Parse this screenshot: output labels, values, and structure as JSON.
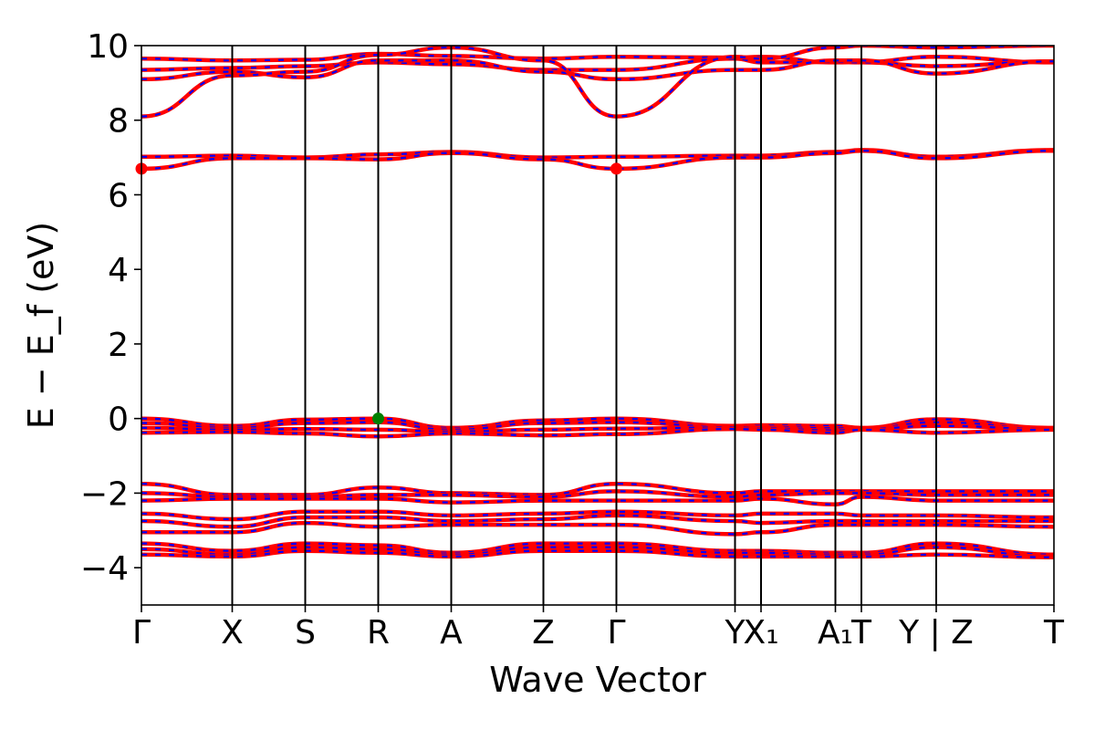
{
  "chart_data": {
    "type": "line",
    "title": "",
    "xlabel": "Wave Vector",
    "ylabel": "E − E_f (eV)",
    "ylim": [
      -5,
      10
    ],
    "yticks": [
      -4,
      -2,
      0,
      2,
      4,
      6,
      8,
      10
    ],
    "ytick_labels": [
      "−4",
      "−2",
      "0",
      "2",
      "4",
      "6",
      "8",
      "10"
    ],
    "kpath_labels": [
      "Γ",
      "X",
      "S",
      "R",
      "A",
      "Z",
      "Γ",
      "Y",
      "X₁",
      "A₁",
      "T",
      "Y | Z",
      "T"
    ],
    "kpath_positions": [
      0,
      0.0995,
      0.1795,
      0.2595,
      0.3395,
      0.4405,
      0.5205,
      0.6505,
      0.679,
      0.7605,
      0.789,
      0.871,
      1.0
    ],
    "grid": false,
    "legend": "none",
    "colors": {
      "band": "#ff0000",
      "band_dash": "#0000ff",
      "cbm": "#ff0000",
      "vbm": "#008000",
      "vline": "#000000"
    },
    "markers": [
      {
        "name": "CBM",
        "k": 0,
        "energy": 6.7,
        "color": "#ff0000"
      },
      {
        "name": "CBM",
        "k": 0.5205,
        "energy": 6.7,
        "color": "#ff0000"
      },
      {
        "name": "VBM",
        "k": 0.2595,
        "energy": 0.0,
        "color": "#008000"
      }
    ],
    "series": [
      {
        "values": [
          9.65,
          9.6,
          9.62,
          9.78,
          9.72,
          9.65,
          9.7,
          9.68,
          9.7,
          9.55,
          9.56,
          9.7,
          9.55
        ]
      },
      {
        "values": [
          9.35,
          9.4,
          9.45,
          9.55,
          9.5,
          9.35,
          9.35,
          9.65,
          9.55,
          9.56,
          9.55,
          9.45,
          9.58
        ]
      },
      {
        "values": [
          9.1,
          9.3,
          9.15,
          9.6,
          9.6,
          9.3,
          9.1,
          9.35,
          9.35,
          9.6,
          9.6,
          9.25,
          9.58
        ]
      },
      {
        "values": [
          8.1,
          9.2,
          9.3,
          9.75,
          9.95,
          9.6,
          8.1,
          9.7,
          9.65,
          9.95,
          10.0,
          9.95,
          10.0
        ]
      },
      {
        "values": [
          7.02,
          7.05,
          7.0,
          7.08,
          7.15,
          7.0,
          7.02,
          7.05,
          7.05,
          7.15,
          7.2,
          7.02,
          7.2
        ]
      },
      {
        "values": [
          6.7,
          6.98,
          6.98,
          6.95,
          7.12,
          6.95,
          6.7,
          7.0,
          7.0,
          7.12,
          7.18,
          6.98,
          7.18
        ]
      },
      {
        "values": [
          0.0,
          -0.2,
          -0.03,
          0.0,
          -0.25,
          -0.05,
          0.0,
          -0.2,
          -0.18,
          -0.2,
          -0.25,
          -0.02,
          -0.25
        ]
      },
      {
        "values": [
          -0.12,
          -0.25,
          -0.12,
          -0.1,
          -0.3,
          -0.12,
          -0.1,
          -0.22,
          -0.22,
          -0.26,
          -0.27,
          -0.1,
          -0.27
        ]
      },
      {
        "values": [
          -0.25,
          -0.3,
          -0.28,
          -0.3,
          -0.35,
          -0.3,
          -0.27,
          -0.24,
          -0.26,
          -0.32,
          -0.28,
          -0.2,
          -0.28
        ]
      },
      {
        "values": [
          -0.38,
          -0.36,
          -0.4,
          -0.48,
          -0.4,
          -0.45,
          -0.42,
          -0.28,
          -0.3,
          -0.38,
          -0.3,
          -0.38,
          -0.3
        ]
      },
      {
        "values": [
          -1.75,
          -2.05,
          -2.05,
          -1.85,
          -2.0,
          -2.05,
          -1.75,
          -2.0,
          -1.95,
          -1.95,
          -1.95,
          -1.95,
          -1.95
        ]
      },
      {
        "values": [
          -2.0,
          -2.1,
          -2.1,
          -2.05,
          -2.05,
          -2.1,
          -1.95,
          -2.1,
          -2.05,
          -2.0,
          -2.0,
          -2.05,
          -2.05
        ]
      },
      {
        "values": [
          -2.2,
          -2.15,
          -2.15,
          -2.15,
          -2.25,
          -2.2,
          -2.2,
          -2.2,
          -2.15,
          -2.3,
          -2.1,
          -2.2,
          -2.2
        ]
      },
      {
        "values": [
          -2.55,
          -2.7,
          -2.5,
          -2.5,
          -2.6,
          -2.55,
          -2.5,
          -2.6,
          -2.55,
          -2.55,
          -2.6,
          -2.6,
          -2.65
        ]
      },
      {
        "values": [
          -2.75,
          -2.9,
          -2.65,
          -2.65,
          -2.75,
          -2.7,
          -2.6,
          -2.75,
          -2.8,
          -2.75,
          -2.75,
          -2.75,
          -2.75
        ]
      },
      {
        "values": [
          -3.05,
          -3.05,
          -2.8,
          -2.9,
          -2.85,
          -2.85,
          -2.85,
          -3.1,
          -3.05,
          -2.85,
          -2.85,
          -2.85,
          -2.9
        ]
      },
      {
        "values": [
          -3.35,
          -3.55,
          -3.35,
          -3.4,
          -3.6,
          -3.35,
          -3.35,
          -3.55,
          -3.55,
          -3.6,
          -3.6,
          -3.35,
          -3.65
        ]
      },
      {
        "values": [
          -3.5,
          -3.65,
          -3.45,
          -3.5,
          -3.65,
          -3.45,
          -3.45,
          -3.6,
          -3.6,
          -3.65,
          -3.65,
          -3.45,
          -3.7
        ]
      },
      {
        "values": [
          -3.65,
          -3.7,
          -3.55,
          -3.6,
          -3.7,
          -3.55,
          -3.55,
          -3.7,
          -3.7,
          -3.7,
          -3.7,
          -3.65,
          -3.72
        ]
      }
    ]
  }
}
